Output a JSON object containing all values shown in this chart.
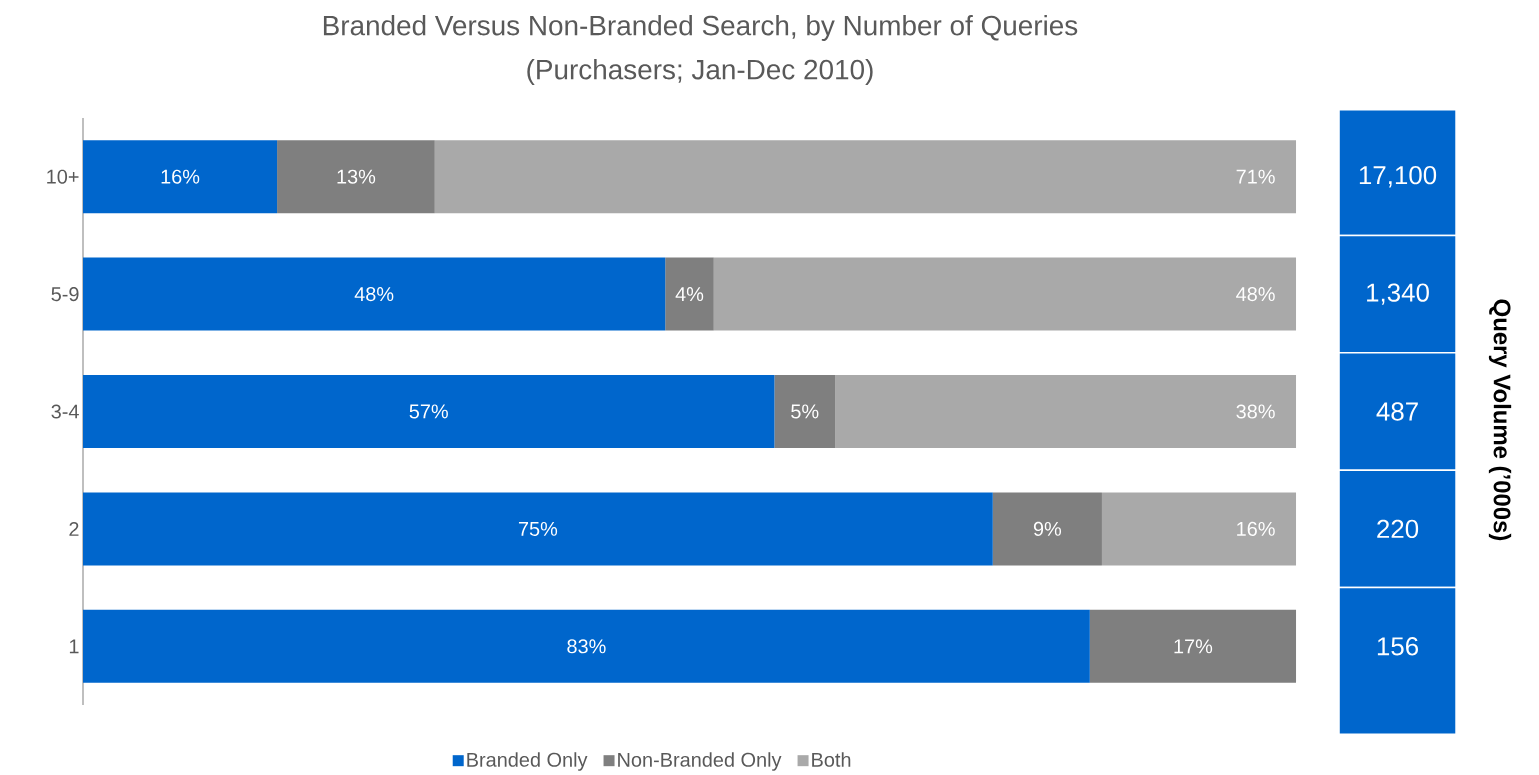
{
  "chart_data": {
    "type": "bar",
    "orientation": "horizontal",
    "stacked": true,
    "title": "Branded Versus Non-Branded Search, by Number of Queries",
    "subtitle": "(Purchasers; Jan-Dec 2010)",
    "categories": [
      "10+",
      "5-9",
      "3-4",
      "2",
      "1"
    ],
    "series": [
      {
        "name": "Branded Only",
        "color": "#0066cc",
        "values": [
          16,
          48,
          57,
          75,
          83
        ],
        "value_labels": [
          "16%",
          "48%",
          "57%",
          "75%",
          "83%"
        ]
      },
      {
        "name": "Non-Branded Only",
        "color": "#7f7f7f",
        "values": [
          13,
          4,
          5,
          9,
          17
        ],
        "value_labels": [
          "13%",
          "4%",
          "5%",
          "9%",
          "17%"
        ]
      },
      {
        "name": "Both",
        "color": "#a9a9a9",
        "values": [
          71,
          48,
          38,
          16,
          0
        ],
        "value_labels": [
          "71%",
          "48%",
          "38%",
          "16%",
          null
        ]
      }
    ],
    "annotations": [
      "Query Volume (’000s)",
      "17,100",
      "1,340",
      "487",
      "220",
      "156"
    ],
    "legend": "bottom",
    "tick_labels": "y"
  }
}
